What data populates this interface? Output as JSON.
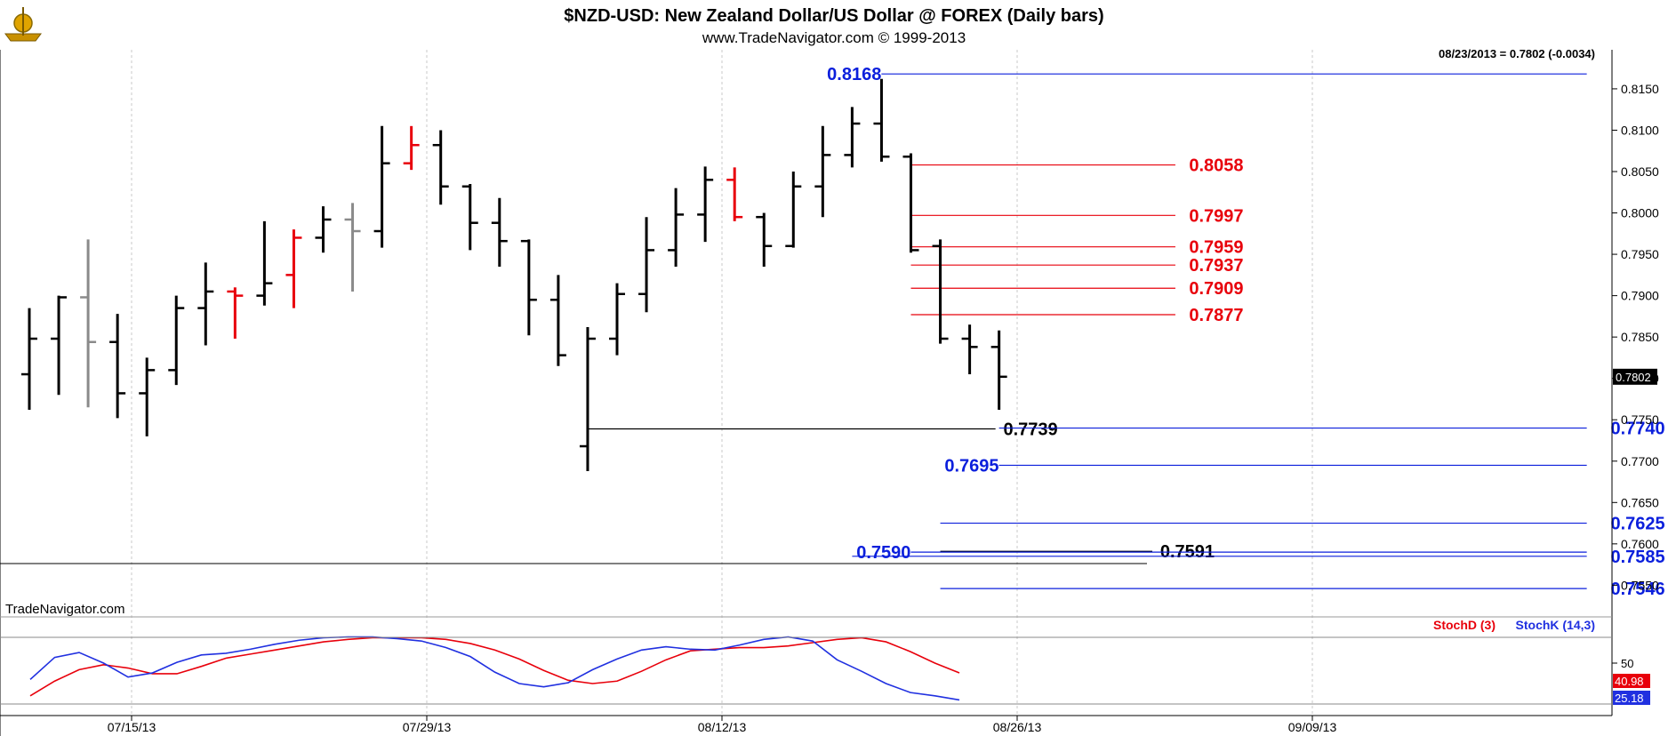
{
  "header": {
    "title": "$NZD-USD:  New Zealand Dollar/US Dollar @ FOREX  (Daily bars)",
    "subtitle": "www.TradeNavigator.com © 1999-2013",
    "last_quote": "08/23/2013 = 0.7802 (-0.0034)",
    "watermark": "TradeNavigator.com"
  },
  "colors": {
    "up_bar": "#000000",
    "red_bar": "#e8000b",
    "gray_bar": "#8a8a8a",
    "level_blue": "#0b1fdc",
    "level_red": "#e8000b",
    "level_black": "#000000",
    "grid": "#c8c8c8",
    "stoch_d": "#e8000b",
    "stoch_k": "#2030e0"
  },
  "chart_data": [
    {
      "type": "bar",
      "subtype": "ohlc",
      "title": "$NZD-USD:  New Zealand Dollar/US Dollar @ FOREX  (Daily bars)",
      "ylim": [
        0.753,
        0.818
      ],
      "y_ticks": [
        "0.8150",
        "0.8100",
        "0.8050",
        "0.8000",
        "0.7950",
        "0.7900",
        "0.7850",
        "0.7800",
        "0.7750",
        "0.7700",
        "0.7650",
        "0.7600",
        "0.7550"
      ],
      "x_ticks": [
        "07/15/13",
        "07/29/13",
        "08/12/13",
        "08/26/13",
        "09/09/13"
      ],
      "grid": true,
      "last_price_label": "0.7802",
      "bars": [
        {
          "o": 0.7805,
          "h": 0.7885,
          "l": 0.7762,
          "c": 0.7848,
          "color": "black"
        },
        {
          "o": 0.7848,
          "h": 0.79,
          "l": 0.778,
          "c": 0.7898,
          "color": "black"
        },
        {
          "o": 0.7898,
          "h": 0.7968,
          "l": 0.7765,
          "c": 0.7844,
          "color": "gray"
        },
        {
          "o": 0.7844,
          "h": 0.7878,
          "l": 0.7752,
          "c": 0.7782,
          "color": "black"
        },
        {
          "o": 0.7782,
          "h": 0.7825,
          "l": 0.773,
          "c": 0.781,
          "color": "black"
        },
        {
          "o": 0.781,
          "h": 0.79,
          "l": 0.7792,
          "c": 0.7885,
          "color": "black"
        },
        {
          "o": 0.7885,
          "h": 0.794,
          "l": 0.784,
          "c": 0.7905,
          "color": "black"
        },
        {
          "o": 0.7905,
          "h": 0.791,
          "l": 0.7848,
          "c": 0.79,
          "color": "red"
        },
        {
          "o": 0.79,
          "h": 0.799,
          "l": 0.7888,
          "c": 0.7915,
          "color": "black"
        },
        {
          "o": 0.7925,
          "h": 0.798,
          "l": 0.7885,
          "c": 0.797,
          "color": "red"
        },
        {
          "o": 0.797,
          "h": 0.8008,
          "l": 0.7952,
          "c": 0.7992,
          "color": "black"
        },
        {
          "o": 0.7992,
          "h": 0.8012,
          "l": 0.7905,
          "c": 0.7978,
          "color": "gray"
        },
        {
          "o": 0.7978,
          "h": 0.8105,
          "l": 0.7958,
          "c": 0.806,
          "color": "black"
        },
        {
          "o": 0.806,
          "h": 0.8105,
          "l": 0.8052,
          "c": 0.8082,
          "color": "red"
        },
        {
          "o": 0.8082,
          "h": 0.81,
          "l": 0.801,
          "c": 0.8032,
          "color": "black"
        },
        {
          "o": 0.8032,
          "h": 0.8035,
          "l": 0.7955,
          "c": 0.7988,
          "color": "black"
        },
        {
          "o": 0.7988,
          "h": 0.8018,
          "l": 0.7935,
          "c": 0.7966,
          "color": "black"
        },
        {
          "o": 0.7966,
          "h": 0.7968,
          "l": 0.7852,
          "c": 0.7895,
          "color": "black"
        },
        {
          "o": 0.7895,
          "h": 0.7925,
          "l": 0.7815,
          "c": 0.7828,
          "color": "black"
        },
        {
          "o": 0.7718,
          "h": 0.7862,
          "l": 0.7688,
          "c": 0.7848,
          "color": "black"
        },
        {
          "o": 0.7848,
          "h": 0.7915,
          "l": 0.7828,
          "c": 0.7902,
          "color": "black"
        },
        {
          "o": 0.7902,
          "h": 0.7995,
          "l": 0.788,
          "c": 0.7955,
          "color": "black"
        },
        {
          "o": 0.7955,
          "h": 0.803,
          "l": 0.7935,
          "c": 0.7998,
          "color": "black"
        },
        {
          "o": 0.7998,
          "h": 0.8056,
          "l": 0.7965,
          "c": 0.804,
          "color": "black"
        },
        {
          "o": 0.804,
          "h": 0.8055,
          "l": 0.799,
          "c": 0.7995,
          "color": "red"
        },
        {
          "o": 0.7995,
          "h": 0.8,
          "l": 0.7935,
          "c": 0.796,
          "color": "black"
        },
        {
          "o": 0.796,
          "h": 0.805,
          "l": 0.7958,
          "c": 0.8032,
          "color": "black"
        },
        {
          "o": 0.8032,
          "h": 0.8105,
          "l": 0.7995,
          "c": 0.807,
          "color": "black"
        },
        {
          "o": 0.807,
          "h": 0.8128,
          "l": 0.8055,
          "c": 0.8108,
          "color": "black"
        },
        {
          "o": 0.8108,
          "h": 0.8162,
          "l": 0.8062,
          "c": 0.8068,
          "color": "black"
        },
        {
          "o": 0.8068,
          "h": 0.8072,
          "l": 0.7952,
          "c": 0.7955,
          "color": "black"
        },
        {
          "o": 0.796,
          "h": 0.7968,
          "l": 0.7842,
          "c": 0.7848,
          "color": "black"
        },
        {
          "o": 0.7848,
          "h": 0.7865,
          "l": 0.7805,
          "c": 0.7838,
          "color": "black"
        },
        {
          "o": 0.7838,
          "h": 0.7858,
          "l": 0.7762,
          "c": 0.7802,
          "color": "black"
        }
      ],
      "levels": [
        {
          "value": "0.8168",
          "side": "left",
          "color": "blue",
          "from_bar": 27,
          "to_bar": 53
        },
        {
          "value": "0.8058",
          "side": "right",
          "color": "red",
          "from_bar": 30,
          "to_bar": 39
        },
        {
          "value": "0.7997",
          "side": "right",
          "color": "red",
          "from_bar": 30,
          "to_bar": 39
        },
        {
          "value": "0.7959",
          "side": "right",
          "color": "red",
          "from_bar": 30,
          "to_bar": 39
        },
        {
          "value": "0.7937",
          "side": "right",
          "color": "red",
          "from_bar": 30,
          "to_bar": 39
        },
        {
          "value": "0.7909",
          "side": "right",
          "color": "red",
          "from_bar": 30,
          "to_bar": 39
        },
        {
          "value": "0.7877",
          "side": "right",
          "color": "red",
          "from_bar": 30,
          "to_bar": 39
        },
        {
          "value": "0.7739",
          "side": "mid",
          "color": "black",
          "from_bar": 19,
          "to_bar": 33
        },
        {
          "value": "0.7740",
          "side": "end",
          "color": "blue",
          "from_bar": 33,
          "to_bar": 53
        },
        {
          "value": "0.7695",
          "side": "left",
          "color": "blue",
          "from_bar": 31,
          "to_bar": 53
        },
        {
          "value": "0.7625",
          "side": "end",
          "color": "blue",
          "from_bar": 31,
          "to_bar": 53
        },
        {
          "value": "0.7591",
          "side": "mid",
          "color": "black",
          "from_bar": 31,
          "to_bar": 39
        },
        {
          "value": "0.7590",
          "side": "left",
          "color": "blue",
          "from_bar": 28,
          "to_bar": 53
        },
        {
          "value": "0.7585",
          "side": "end",
          "color": "blue",
          "from_bar": 28,
          "to_bar": 53
        },
        {
          "value": "0.7546",
          "side": "end",
          "color": "blue",
          "from_bar": 31,
          "to_bar": 53
        }
      ]
    },
    {
      "type": "line",
      "title": "",
      "ylim": [
        0,
        100
      ],
      "y_ticks": [
        "50"
      ],
      "value_labels": [
        "40.98",
        "25.18"
      ],
      "series": [
        {
          "name": "StochD (3)",
          "color": "red",
          "values": [
            10,
            28,
            42,
            48,
            44,
            37,
            37,
            46,
            56,
            61,
            66,
            71,
            76,
            79,
            81,
            81,
            81,
            79,
            74,
            66,
            55,
            41,
            29,
            25,
            28,
            40,
            54,
            65,
            67,
            69,
            69,
            71,
            75,
            79,
            81,
            76,
            64,
            50,
            38
          ]
        },
        {
          "name": "StochK (14,3)",
          "color": "blue",
          "values": [
            30,
            57,
            63,
            50,
            33,
            38,
            51,
            60,
            62,
            67,
            73,
            78,
            81,
            82,
            82,
            80,
            77,
            69,
            58,
            39,
            25,
            21,
            26,
            42,
            55,
            66,
            70,
            67,
            66,
            72,
            79,
            82,
            77,
            54,
            40,
            25,
            14,
            10,
            5
          ]
        }
      ]
    }
  ]
}
